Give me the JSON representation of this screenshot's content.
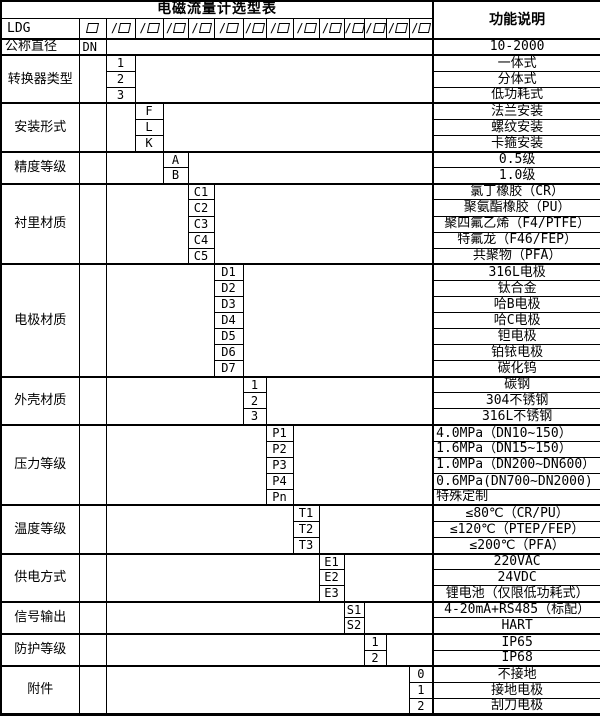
{
  "table": {
    "title": "电磁流量计选型表",
    "function_header": "功能说明",
    "model_code": "LDG",
    "box_symbol": "□",
    "slot_prefix": "/",
    "slot_count": 13,
    "groups": [
      {
        "label": "公称直径",
        "slot": -1,
        "label_align": "left",
        "rows": [
          {
            "code": "DN",
            "desc": "10-2000"
          }
        ]
      },
      {
        "label": "转换器类型",
        "slot": 0,
        "rows": [
          {
            "code": "1",
            "desc": "一体式"
          },
          {
            "code": "2",
            "desc": "分体式"
          },
          {
            "code": "3",
            "desc": "低功耗式"
          }
        ]
      },
      {
        "label": "安装形式",
        "slot": 1,
        "rows": [
          {
            "code": "F",
            "desc": "法兰安装"
          },
          {
            "code": "L",
            "desc": "螺纹安装"
          },
          {
            "code": "K",
            "desc": "卡箍安装"
          }
        ]
      },
      {
        "label": "精度等级",
        "slot": 2,
        "rows": [
          {
            "code": "A",
            "desc": "0.5级"
          },
          {
            "code": "B",
            "desc": "1.0级"
          }
        ]
      },
      {
        "label": "衬里材质",
        "slot": 3,
        "rows": [
          {
            "code": "C1",
            "desc": "氯丁橡胶（CR）"
          },
          {
            "code": "C2",
            "desc": "聚氨酯橡胶（PU）"
          },
          {
            "code": "C3",
            "desc": "聚四氟乙烯（F4/PTFE）"
          },
          {
            "code": "C4",
            "desc": "特氟龙（F46/FEP）"
          },
          {
            "code": "C5",
            "desc": "共聚物（PFA）"
          }
        ]
      },
      {
        "label": "电极材质",
        "slot": 4,
        "rows": [
          {
            "code": "D1",
            "desc": "316L电极"
          },
          {
            "code": "D2",
            "desc": "钛合金"
          },
          {
            "code": "D3",
            "desc": "哈B电极"
          },
          {
            "code": "D4",
            "desc": "哈C电极"
          },
          {
            "code": "D5",
            "desc": "钽电极"
          },
          {
            "code": "D6",
            "desc": "铂铱电极"
          },
          {
            "code": "D7",
            "desc": "碳化钨"
          }
        ]
      },
      {
        "label": "外壳材质",
        "slot": 5,
        "rows": [
          {
            "code": "1",
            "desc": "碳钢"
          },
          {
            "code": "2",
            "desc": "304不锈钢"
          },
          {
            "code": "3",
            "desc": "316L不锈钢"
          }
        ]
      },
      {
        "label": "压力等级",
        "slot": 6,
        "desc_align": "left",
        "rows": [
          {
            "code": "P1",
            "desc": "4.0MPa（DN10~150）"
          },
          {
            "code": "P2",
            "desc": "1.6MPa（DN15~150）"
          },
          {
            "code": "P3",
            "desc": "1.0MPa（DN200~DN600）"
          },
          {
            "code": "P4",
            "desc": "0.6MPa(DN700~DN2000)"
          },
          {
            "code": "Pn",
            "desc": "特殊定制"
          }
        ]
      },
      {
        "label": "温度等级",
        "slot": 7,
        "rows": [
          {
            "code": "T1",
            "desc": "≤80℃（CR/PU）"
          },
          {
            "code": "T2",
            "desc": "≤120℃（PTEP/FEP）"
          },
          {
            "code": "T3",
            "desc": "≤200℃（PFA）"
          }
        ]
      },
      {
        "label": "供电方式",
        "slot": 8,
        "rows": [
          {
            "code": "E1",
            "desc": "220VAC"
          },
          {
            "code": "E2",
            "desc": "24VDC"
          },
          {
            "code": "E3",
            "desc": "锂电池（仅限低功耗式）"
          }
        ]
      },
      {
        "label": "信号输出",
        "slot": 9,
        "rows": [
          {
            "code": "S1",
            "desc": "4-20mA+RS485（标配）"
          },
          {
            "code": "S2",
            "desc": "HART"
          }
        ]
      },
      {
        "label": "防护等级",
        "slot": 10,
        "rows": [
          {
            "code": "1",
            "desc": "IP65"
          },
          {
            "code": "2",
            "desc": "IP68"
          }
        ]
      },
      {
        "label": "附件",
        "slot": 12,
        "rows": [
          {
            "code": "0",
            "desc": "不接地"
          },
          {
            "code": "1",
            "desc": "接地电极"
          },
          {
            "code": "2",
            "desc": "刮刀电极"
          }
        ]
      }
    ]
  }
}
